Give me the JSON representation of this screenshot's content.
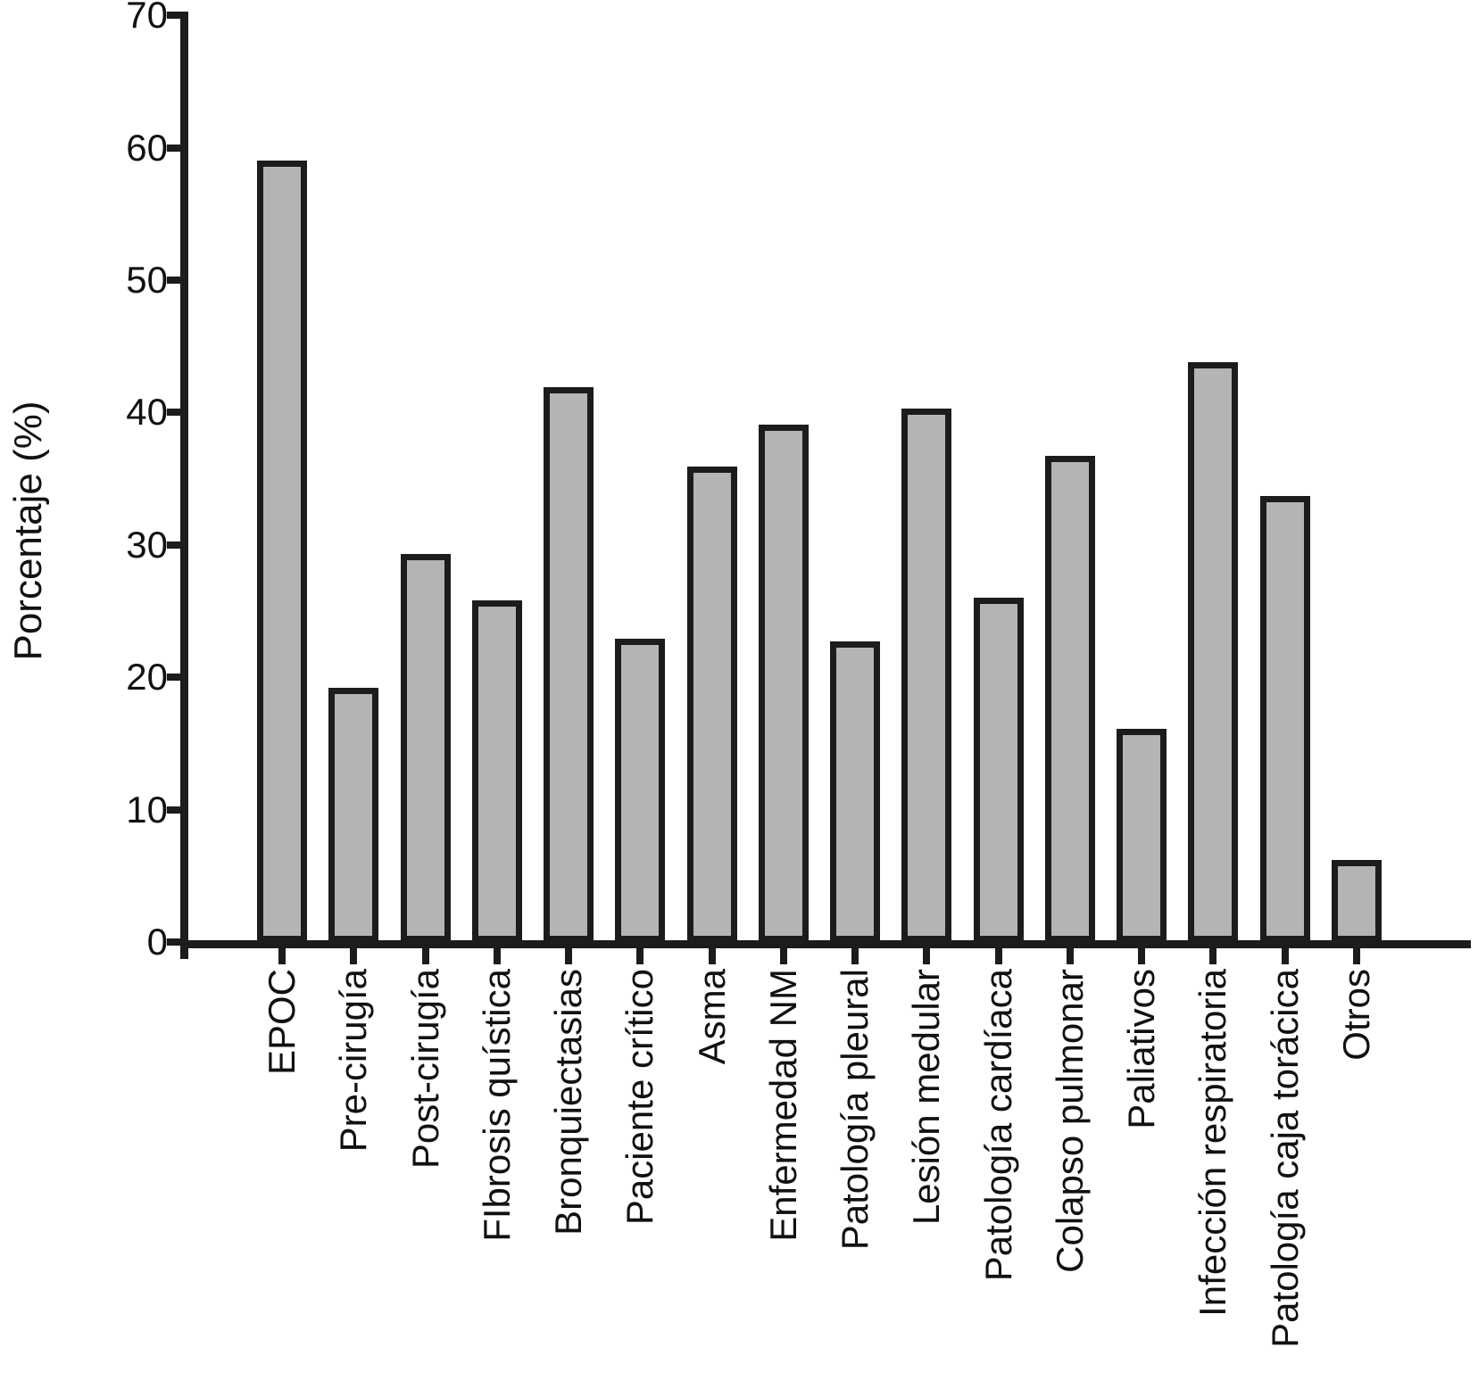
{
  "chart_data": {
    "type": "bar",
    "title": "",
    "xlabel": "",
    "ylabel": "Porcentaje (%)",
    "categories": [
      "EPOC",
      "Pre-cirugía",
      "Post-cirugía",
      "FIbrosis quística",
      "Bronquiectasias",
      "Paciente crítico",
      "Asma",
      "Enfermedad NM",
      "Patología pleural",
      "Lesión medular",
      "Patología cardíaca",
      "Colapso pulmonar",
      "Paliativos",
      "Infección respiratoria",
      "Patología caja torácica",
      "Otros"
    ],
    "values": [
      59.0,
      19.2,
      29.3,
      25.8,
      41.9,
      22.9,
      35.9,
      39.1,
      22.7,
      40.3,
      26.0,
      36.7,
      16.1,
      43.8,
      33.7,
      6.2
    ],
    "ylim": [
      0,
      70
    ],
    "yticks": [
      0,
      10,
      20,
      30,
      40,
      50,
      60,
      70
    ],
    "grid": false,
    "legend": "none",
    "x_tick_label_rotation_deg": 90,
    "colors": {
      "bar_fill": "#b4b4b4",
      "bar_border": "#1c1c1c",
      "axis": "#1c1c1c",
      "text": "#111111",
      "background": "#ffffff"
    }
  }
}
